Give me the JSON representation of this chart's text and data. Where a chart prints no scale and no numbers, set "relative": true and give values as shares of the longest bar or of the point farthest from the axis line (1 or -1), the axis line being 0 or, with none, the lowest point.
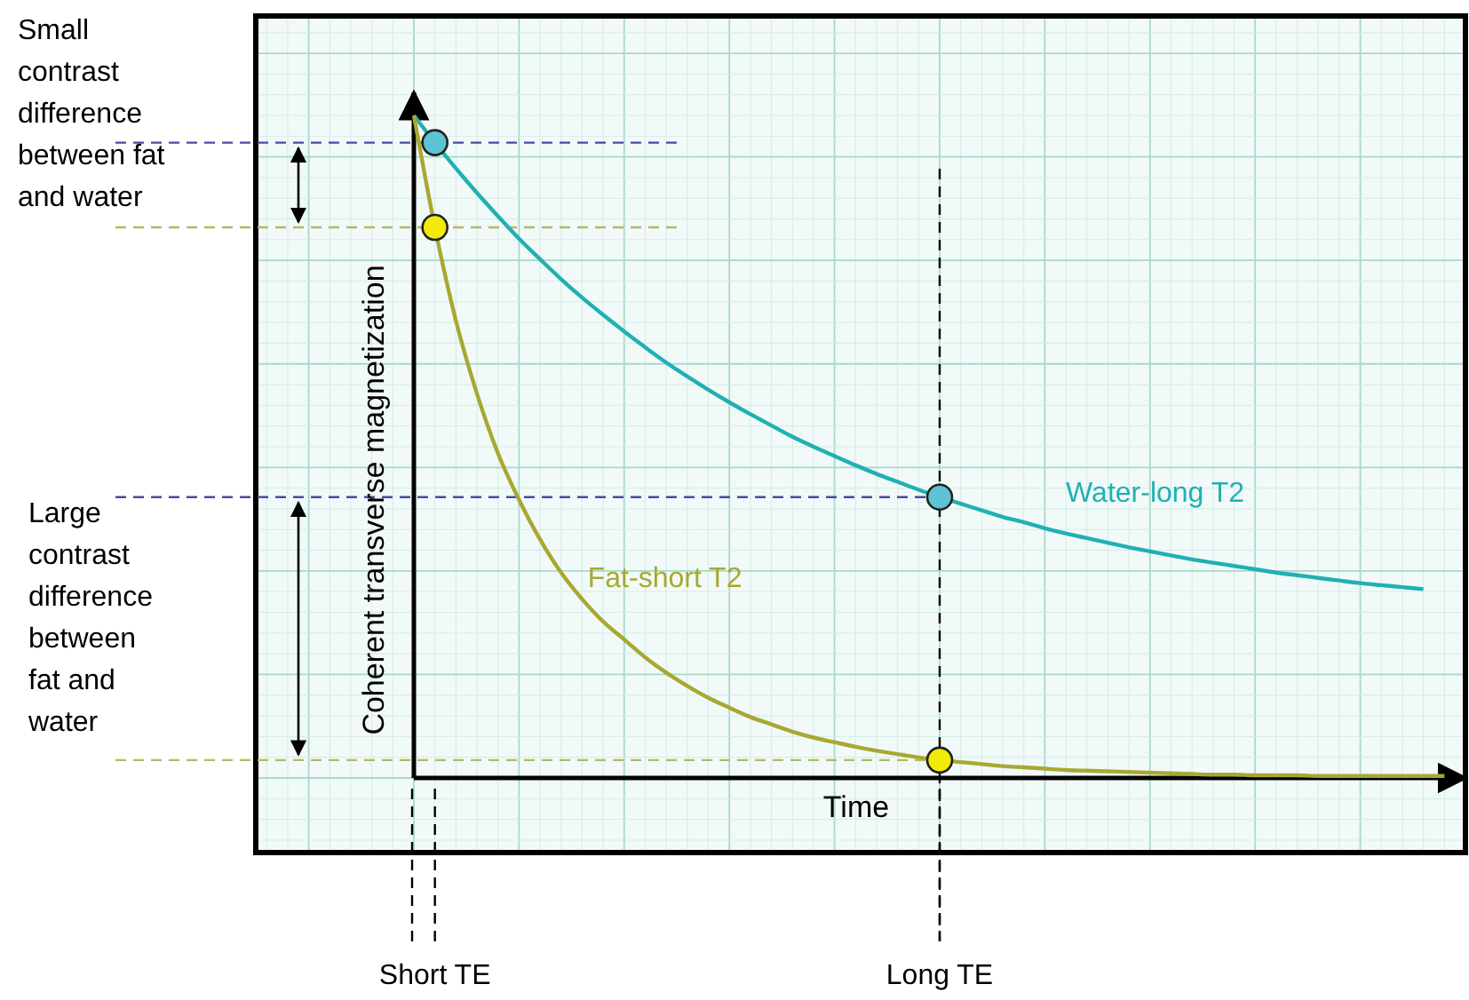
{
  "chart_data": {
    "type": "line",
    "relative": true,
    "xlabel": "Time",
    "ylabel": "Coherent transverse magnetization",
    "grid": true,
    "categories": [
      null,
      "Short TE",
      null,
      null,
      null,
      null,
      null,
      null,
      null,
      null,
      null,
      null,
      null,
      null,
      null,
      null,
      null,
      null,
      null,
      null,
      null,
      null,
      null,
      null,
      null,
      "Long TE",
      null,
      null,
      null,
      null,
      null,
      null,
      null,
      null,
      null,
      null,
      null,
      null,
      null,
      null,
      null,
      null,
      null,
      null,
      null,
      null,
      null,
      null,
      null,
      null
    ],
    "series": [
      {
        "name": "Water-long T2",
        "color": "#20b0b4",
        "values": [
          1,
          0.959,
          0.92,
          0.883,
          0.848,
          0.814,
          0.783,
          0.753,
          0.725,
          0.699,
          0.674,
          0.65,
          0.627,
          0.606,
          0.586,
          0.567,
          0.549,
          0.532,
          0.515,
          0.5,
          0.486,
          0.472,
          0.459,
          0.447,
          0.435,
          0.424,
          0.414,
          0.404,
          0.394,
          0.386,
          0.377,
          0.369,
          0.362,
          0.355,
          0.348,
          0.342,
          0.336,
          0.33,
          0.325,
          0.32,
          0.315,
          0.31,
          0.306,
          0.302,
          0.298,
          0.294,
          0.291,
          0.288,
          0.285,
          null
        ]
      },
      {
        "name": "Fat-short T2",
        "color": "#a8a832",
        "values": [
          1,
          0.831,
          0.69,
          0.58,
          0.49,
          0.42,
          0.36,
          0.31,
          0.27,
          0.236,
          0.209,
          0.182,
          0.159,
          0.139,
          0.121,
          0.106,
          0.092,
          0.081,
          0.07,
          0.061,
          0.054,
          0.047,
          0.041,
          0.036,
          0.031,
          0.027,
          0.024,
          0.021,
          0.018,
          0.016,
          0.014,
          0.012,
          0.011,
          0.01,
          0.009,
          0.008,
          0.007,
          0.006,
          0.005,
          0.005,
          0.004,
          0.004,
          0.004,
          0.003,
          0.003,
          0.003,
          0.003,
          0.003,
          0.003,
          0.003
        ]
      },
      {
        "type": "scatter",
        "marker": "circle",
        "color": "#5cc4d4",
        "values": [
          null,
          0.959,
          null,
          null,
          null,
          null,
          null,
          null,
          null,
          null,
          null,
          null,
          null,
          null,
          null,
          null,
          null,
          null,
          null,
          null,
          null,
          null,
          null,
          null,
          null,
          0.424,
          null,
          null,
          null,
          null,
          null,
          null,
          null,
          null,
          null,
          null,
          null,
          null,
          null,
          null,
          null,
          null,
          null,
          null,
          null,
          null,
          null,
          null,
          null,
          null
        ]
      },
      {
        "type": "scatter",
        "marker": "circle",
        "color": "#f2ea0a",
        "values": [
          null,
          0.831,
          null,
          null,
          null,
          null,
          null,
          null,
          null,
          null,
          null,
          null,
          null,
          null,
          null,
          null,
          null,
          null,
          null,
          null,
          null,
          null,
          null,
          null,
          null,
          0.027,
          null,
          null,
          null,
          null,
          null,
          null,
          null,
          null,
          null,
          null,
          null,
          null,
          null,
          null,
          null,
          null,
          null,
          null,
          null,
          null,
          null,
          null,
          null,
          null
        ]
      }
    ],
    "ref_lines": [
      {
        "axis": "y",
        "value": 0.959,
        "color": "#4a4aa0",
        "line_style": "dashed"
      },
      {
        "axis": "y",
        "value": 0.831,
        "color": "#b8b860",
        "line_style": "dashed"
      },
      {
        "axis": "y",
        "value": 0.424,
        "color": "#4a4aa0",
        "line_style": "dashed"
      },
      {
        "axis": "y",
        "value": 0.027,
        "color": "#b8b860",
        "line_style": "dashed"
      },
      {
        "axis": "x",
        "value": "Long TE",
        "color": "#000000",
        "line_style": "dashed"
      }
    ],
    "annotations": [
      "Small contrast difference between fat and water",
      "Large contrast difference between fat and water"
    ]
  }
}
